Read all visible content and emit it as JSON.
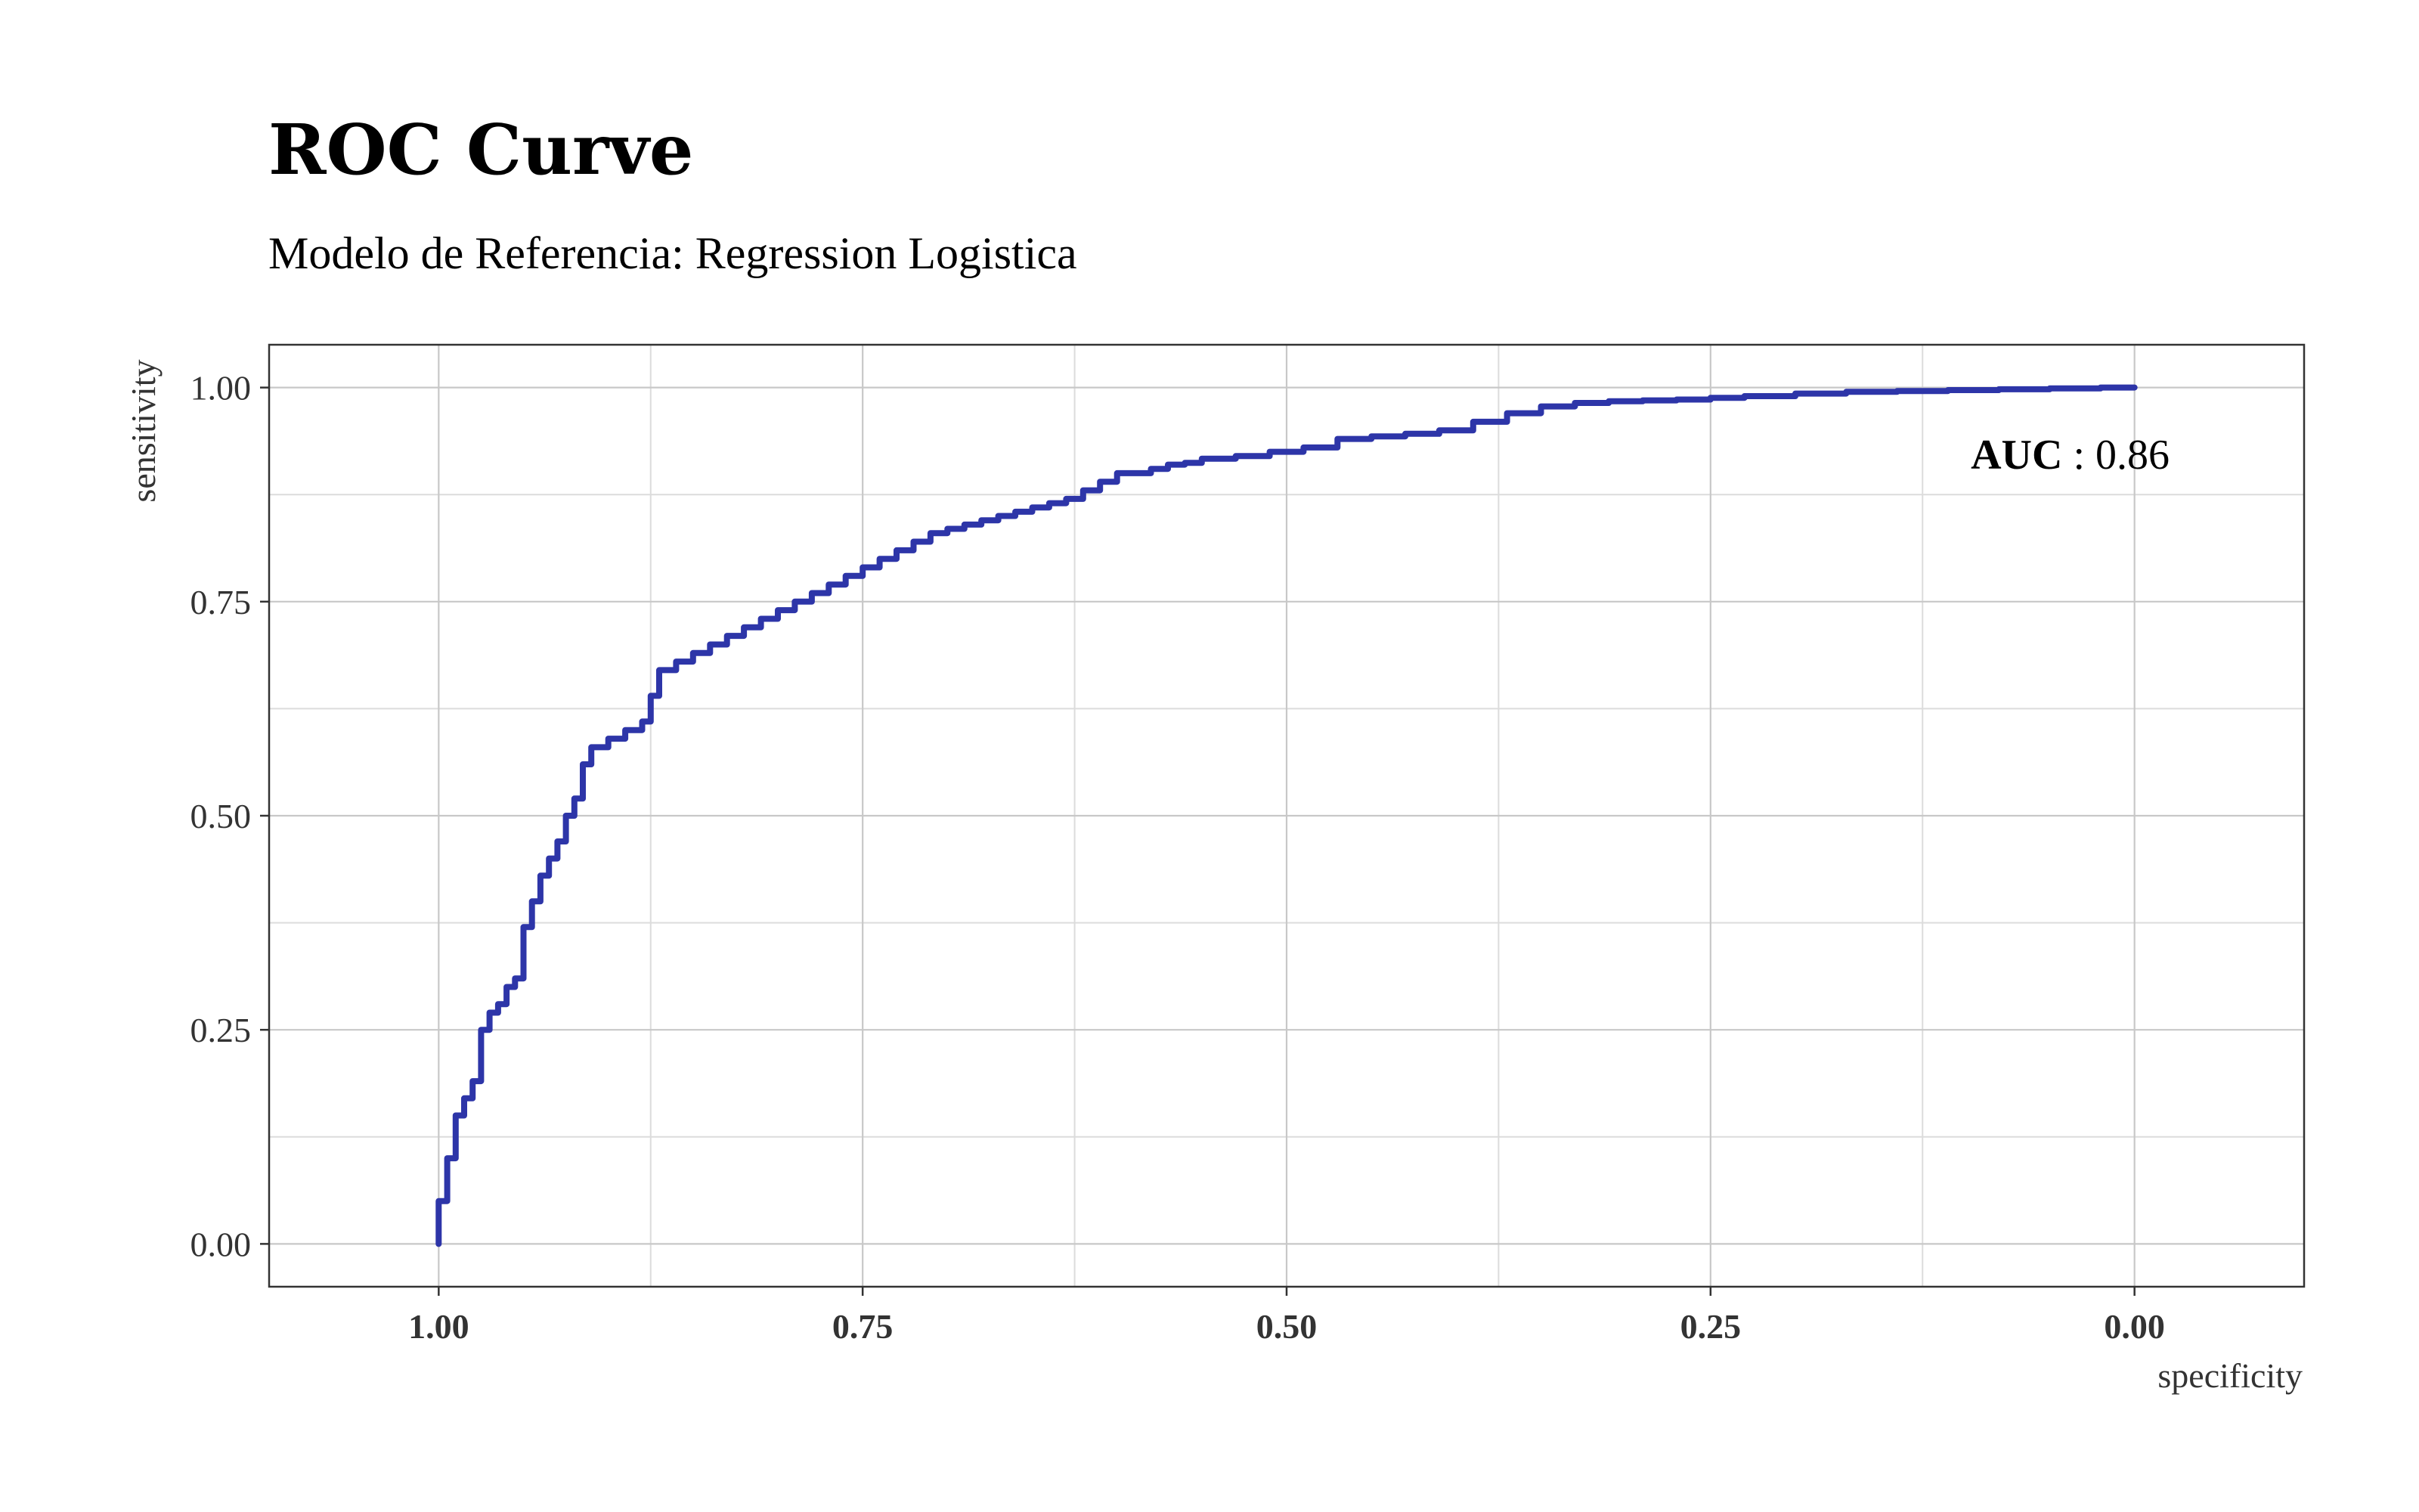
{
  "chart_data": {
    "type": "line",
    "title": "ROC Curve",
    "subtitle": "Modelo de Referencia: Regression Logistica",
    "xlabel": "specificity",
    "ylabel": "sensitivity",
    "x_reversed": true,
    "xlim": [
      1.1,
      -0.1
    ],
    "ylim": [
      -0.05,
      1.05
    ],
    "x_ticks": [
      "1.00",
      "0.75",
      "0.50",
      "0.25",
      "0.00"
    ],
    "y_ticks": [
      "0.00",
      "0.25",
      "0.50",
      "0.75",
      "1.00"
    ],
    "grid": true,
    "annotation": {
      "label": "AUC",
      "separator": " : ",
      "value": "0.86"
    },
    "series": [
      {
        "color": "#2d35a8",
        "specificity": [
          1.0,
          1.0,
          0.995,
          0.99,
          0.985,
          0.98,
          0.975,
          0.97,
          0.965,
          0.96,
          0.955,
          0.95,
          0.945,
          0.94,
          0.935,
          0.93,
          0.925,
          0.92,
          0.915,
          0.91,
          0.9,
          0.89,
          0.88,
          0.875,
          0.87,
          0.86,
          0.85,
          0.84,
          0.83,
          0.82,
          0.81,
          0.8,
          0.79,
          0.78,
          0.77,
          0.76,
          0.75,
          0.74,
          0.73,
          0.72,
          0.71,
          0.7,
          0.69,
          0.68,
          0.67,
          0.66,
          0.65,
          0.64,
          0.63,
          0.62,
          0.61,
          0.6,
          0.59,
          0.58,
          0.57,
          0.56,
          0.55,
          0.53,
          0.51,
          0.49,
          0.47,
          0.45,
          0.43,
          0.41,
          0.39,
          0.37,
          0.35,
          0.33,
          0.31,
          0.29,
          0.27,
          0.25,
          0.23,
          0.2,
          0.17,
          0.14,
          0.11,
          0.08,
          0.05,
          0.02,
          0.0
        ],
        "sensitivity": [
          0.0,
          0.02,
          0.05,
          0.1,
          0.15,
          0.17,
          0.19,
          0.25,
          0.27,
          0.28,
          0.3,
          0.31,
          0.37,
          0.4,
          0.43,
          0.45,
          0.47,
          0.5,
          0.52,
          0.56,
          0.58,
          0.59,
          0.6,
          0.61,
          0.64,
          0.67,
          0.68,
          0.69,
          0.7,
          0.71,
          0.72,
          0.73,
          0.74,
          0.75,
          0.76,
          0.77,
          0.78,
          0.79,
          0.8,
          0.81,
          0.82,
          0.83,
          0.835,
          0.84,
          0.845,
          0.85,
          0.855,
          0.86,
          0.865,
          0.87,
          0.88,
          0.89,
          0.9,
          0.9,
          0.905,
          0.91,
          0.912,
          0.917,
          0.92,
          0.925,
          0.93,
          0.94,
          0.943,
          0.946,
          0.95,
          0.96,
          0.97,
          0.978,
          0.982,
          0.984,
          0.985,
          0.986,
          0.988,
          0.99,
          0.993,
          0.995,
          0.996,
          0.997,
          0.998,
          0.999,
          1.0
        ]
      }
    ]
  }
}
